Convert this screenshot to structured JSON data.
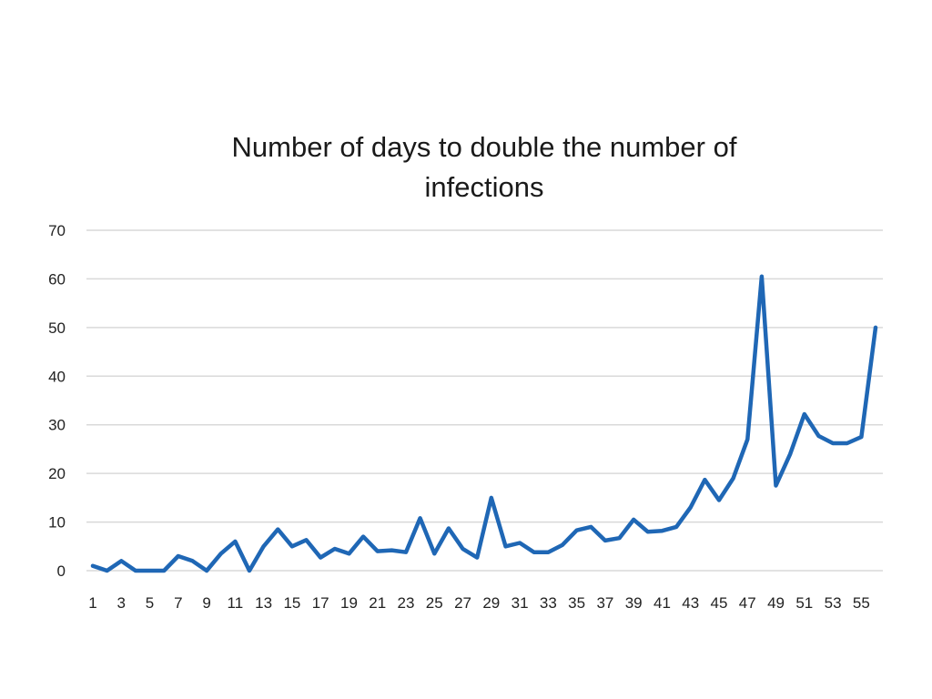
{
  "chart_data": {
    "type": "line",
    "title_lines": [
      "Number of days to double the number of",
      "infections"
    ],
    "xlabel": "",
    "ylabel": "",
    "ylim": [
      0,
      70
    ],
    "y_ticks": [
      0,
      10,
      20,
      30,
      40,
      50,
      60,
      70
    ],
    "x": [
      1,
      2,
      3,
      4,
      5,
      6,
      7,
      8,
      9,
      10,
      11,
      12,
      13,
      14,
      15,
      16,
      17,
      18,
      19,
      20,
      21,
      22,
      23,
      24,
      25,
      26,
      27,
      28,
      29,
      30,
      31,
      32,
      33,
      34,
      35,
      36,
      37,
      38,
      39,
      40,
      41,
      42,
      43,
      44,
      45,
      46,
      47,
      48,
      49,
      50,
      51,
      52,
      53,
      54,
      55,
      56
    ],
    "x_tick_labels": [
      1,
      3,
      5,
      7,
      9,
      11,
      13,
      15,
      17,
      19,
      21,
      23,
      25,
      27,
      29,
      31,
      33,
      35,
      37,
      39,
      41,
      43,
      45,
      47,
      49,
      51,
      53,
      55
    ],
    "grid": true,
    "legend": "none",
    "series": [
      {
        "color": "#1f67b5",
        "values": [
          1,
          0,
          2,
          0,
          0,
          0,
          3,
          2,
          0,
          3.5,
          6,
          0,
          5,
          8.5,
          5,
          6.3,
          2.7,
          4.5,
          3.5,
          7,
          4,
          4.2,
          3.8,
          10.8,
          3.5,
          8.7,
          4.5,
          2.7,
          15,
          5,
          5.7,
          3.8,
          3.8,
          5.3,
          8.3,
          9,
          6.2,
          6.7,
          10.5,
          8,
          8.2,
          9,
          13,
          18.7,
          14.5,
          19,
          27,
          60.5,
          17.5,
          24,
          32.2,
          27.7,
          26.2,
          26.2,
          27.5,
          50
        ]
      }
    ]
  }
}
